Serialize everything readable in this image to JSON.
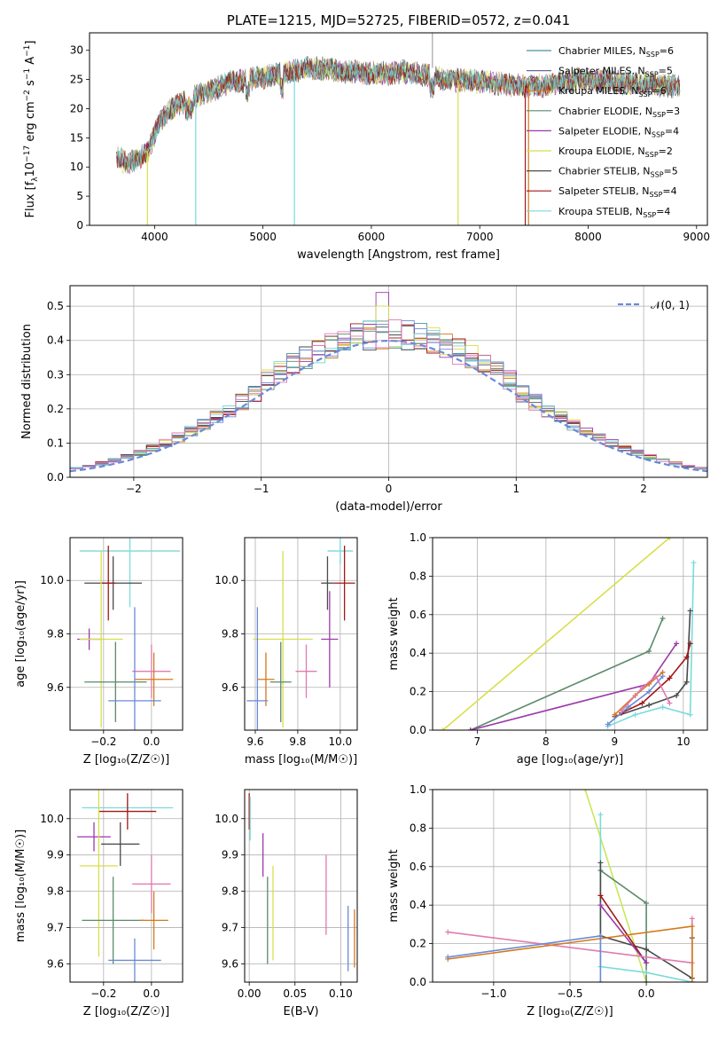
{
  "figure_title": "PLATE=1215, MJD=52725, FIBERID=0572, z=0.041",
  "colors": {
    "Chabrier MILES": "#4a90a0",
    "Salpeter MILES": "#6a6a9a",
    "Kroupa MILES": "#d4781c",
    "Chabrier ELODIE": "#5a8a6a",
    "Salpeter ELODIE": "#9a3aaa",
    "Kroupa ELODIE": "#d8de4a",
    "Chabrier STELIB": "#4a4a4a",
    "Salpeter STELIB": "#a01818",
    "Kroupa STELIB": "#7adada",
    "extra_blue": "#6a8ad8",
    "extra_pink": "#e07ab0",
    "extra_lime": "#c8e85a"
  },
  "chart_data": [
    {
      "id": "spectrum",
      "type": "line",
      "title": "PLATE=1215, MJD=52725, FIBERID=0572, z=0.041",
      "xlabel": "wavelength [Angstrom, rest frame]",
      "ylabel": "Flux [f",
      "ylabel_full": "Flux [fλ10⁻¹⁷ erg cm⁻² s⁻¹ A⁻¹]",
      "xlim": [
        3400,
        9100
      ],
      "ylim": [
        0,
        33
      ],
      "xticks": [
        4000,
        5000,
        6000,
        7000,
        8000,
        9000
      ],
      "yticks": [
        0,
        5,
        10,
        15,
        20,
        25,
        30
      ],
      "grid": false,
      "legend_position": "top-right",
      "legend": [
        {
          "name": "Chabrier MILES",
          "sub": "SSP",
          "n": "6"
        },
        {
          "name": "Salpeter MILES",
          "sub": "SSP",
          "n": "5"
        },
        {
          "name": "Kroupa MILES",
          "sub": "SSP",
          "n": "6"
        },
        {
          "name": "Chabrier ELODIE",
          "sub": "SSP",
          "n": "3"
        },
        {
          "name": "Salpeter ELODIE",
          "sub": "SSP",
          "n": "4"
        },
        {
          "name": "Kroupa ELODIE",
          "sub": "SSP",
          "n": "2"
        },
        {
          "name": "Chabrier STELIB",
          "sub": "SSP",
          "n": "5"
        },
        {
          "name": "Salpeter STELIB",
          "sub": "SSP",
          "n": "4"
        },
        {
          "name": "Kroupa STELIB",
          "sub": "SSP",
          "n": "4"
        }
      ],
      "continuum": {
        "x": [
          3650,
          3750,
          3850,
          3950,
          4050,
          4150,
          4300,
          4500,
          4700,
          4900,
          5100,
          5300,
          5500,
          5700,
          5900,
          6100,
          6300,
          6500,
          6700,
          6900,
          7100,
          7300,
          7500,
          7700,
          7900,
          8100,
          8300,
          8500,
          8700,
          8850
        ],
        "y": [
          12,
          10.5,
          11.5,
          13,
          18,
          20,
          21.5,
          23,
          24.5,
          25,
          25.8,
          26.5,
          27,
          26.5,
          26.2,
          26,
          26.3,
          25.8,
          25,
          24.8,
          24.5,
          24,
          23.8,
          24.2,
          25,
          24.8,
          24.5,
          24.3,
          24,
          23.8
        ]
      },
      "absorption_dips": [
        {
          "x": 3934,
          "y": 0,
          "series": "Kroupa ELODIE"
        },
        {
          "x": 4380,
          "y": 0,
          "series": "Kroupa STELIB"
        },
        {
          "x": 5290,
          "y": 0,
          "series": "Kroupa STELIB"
        },
        {
          "x": 6800,
          "y": 0,
          "series": "Kroupa ELODIE"
        },
        {
          "x": 7420,
          "y": 0,
          "series": "Salpeter STELIB"
        },
        {
          "x": 7450,
          "y": 0,
          "series": "Kroupa MILES"
        }
      ]
    },
    {
      "id": "residuals",
      "type": "histogram",
      "xlabel": "(data-model)/error",
      "ylabel": "Normed distribution",
      "xlim": [
        -2.5,
        2.5
      ],
      "ylim": [
        0,
        0.56
      ],
      "xticks": [
        -2,
        -1,
        0,
        1,
        2
      ],
      "yticks": [
        0.0,
        0.1,
        0.2,
        0.3,
        0.4,
        0.5
      ],
      "grid": true,
      "legend_position": "top-right",
      "legend": [
        {
          "name": "𝒩(0, 1)",
          "style": "dashed"
        }
      ],
      "bin_width": 0.1,
      "peak_values": {
        "Salpeter ELODIE": 0.54,
        "Kroupa ELODIE": 0.5,
        "Chabrier STELIB": 0.47
      }
    },
    {
      "id": "age_vs_Z",
      "type": "errorbar",
      "xlabel": "Z [log₁₀(Z/Z☉)]",
      "ylabel": "age  [log₁₀(age/yr)]",
      "xlim": [
        -0.34,
        0.13
      ],
      "ylim": [
        9.44,
        10.16
      ],
      "xticks": [
        -0.2,
        0.0
      ],
      "yticks": [
        9.6,
        9.8,
        10.0
      ],
      "grid": true,
      "points": [
        {
          "series": "Kroupa STELIB",
          "x": -0.09,
          "xerr": 0.21,
          "y": 10.11,
          "yerr": 0.21
        },
        {
          "series": "Chabrier STELIB",
          "x": -0.16,
          "xerr": 0.12,
          "y": 9.99,
          "yerr": 0.1
        },
        {
          "series": "Salpeter STELIB",
          "x": -0.18,
          "xerr": 0.03,
          "y": 9.99,
          "yerr": 0.14
        },
        {
          "series": "Salpeter ELODIE",
          "x": -0.26,
          "xerr": 0.05,
          "y": 9.78,
          "yerr": 0.04
        },
        {
          "series": "Kroupa ELODIE",
          "x": -0.21,
          "xerr": 0.09,
          "y": 9.78,
          "yerr": 0.33
        },
        {
          "series": "Chabrier ELODIE",
          "x": -0.15,
          "xerr": 0.13,
          "y": 9.62,
          "yerr": 0.15
        },
        {
          "series": "extra_pink",
          "x": 0.0,
          "xerr": 0.08,
          "y": 9.66,
          "yerr": 0.1
        },
        {
          "series": "Kroupa MILES",
          "x": 0.01,
          "xerr": 0.08,
          "y": 9.63,
          "yerr": 0.1
        },
        {
          "series": "extra_blue",
          "x": -0.07,
          "xerr": 0.11,
          "y": 9.55,
          "yerr": 0.35
        }
      ]
    },
    {
      "id": "age_vs_mass",
      "type": "errorbar",
      "xlabel": "mass [log₁₀(M/M☉)]",
      "ylabel": "",
      "xlim": [
        9.55,
        10.08
      ],
      "ylim": [
        9.44,
        10.16
      ],
      "xticks": [
        9.6,
        9.8,
        10.0
      ],
      "yticks": [
        9.6,
        9.8,
        10.0
      ],
      "grid": true,
      "points": [
        {
          "series": "Kroupa STELIB",
          "x": 10.0,
          "xerr": 0.06,
          "y": 10.11,
          "yerr": 0.05
        },
        {
          "series": "Chabrier STELIB",
          "x": 9.94,
          "xerr": 0.03,
          "y": 9.99,
          "yerr": 0.1
        },
        {
          "series": "Salpeter STELIB",
          "x": 10.02,
          "xerr": 0.05,
          "y": 9.99,
          "yerr": 0.14
        },
        {
          "series": "Salpeter ELODIE",
          "x": 9.95,
          "xerr": 0.04,
          "y": 9.78,
          "yerr": 0.18
        },
        {
          "series": "Kroupa ELODIE",
          "x": 9.73,
          "xerr": 0.14,
          "y": 9.78,
          "yerr": 0.33
        },
        {
          "series": "Chabrier ELODIE",
          "x": 9.72,
          "xerr": 0.05,
          "y": 9.62,
          "yerr": 0.15
        },
        {
          "series": "extra_pink",
          "x": 9.84,
          "xerr": 0.05,
          "y": 9.66,
          "yerr": 0.1
        },
        {
          "series": "Kroupa MILES",
          "x": 9.65,
          "xerr": 0.04,
          "y": 9.63,
          "yerr": 0.1
        },
        {
          "series": "extra_blue",
          "x": 9.61,
          "xerr": 0.05,
          "y": 9.55,
          "yerr": 0.35
        }
      ]
    },
    {
      "id": "massweight_vs_age",
      "type": "line",
      "xlabel": "age  [log₁₀(age/yr)]",
      "ylabel": "mass weight",
      "xlim": [
        6.35,
        10.35
      ],
      "ylim": [
        0,
        1.0
      ],
      "xticks": [
        7,
        8,
        9,
        10
      ],
      "yticks": [
        0.0,
        0.2,
        0.4,
        0.6,
        0.8,
        1.0
      ],
      "grid": true,
      "series": [
        {
          "name": "Kroupa ELODIE",
          "x": [
            6.5,
            9.8
          ],
          "y": [
            0.0,
            1.0
          ]
        },
        {
          "name": "Chabrier ELODIE",
          "x": [
            6.9,
            9.5,
            9.7
          ],
          "y": [
            0.0,
            0.41,
            0.58
          ]
        },
        {
          "name": "Salpeter ELODIE",
          "x": [
            6.9,
            9.5,
            9.9
          ],
          "y": [
            0.0,
            0.24,
            0.45
          ]
        },
        {
          "name": "Kroupa STELIB",
          "x": [
            8.9,
            9.3,
            9.7,
            10.1,
            10.15
          ],
          "y": [
            0.02,
            0.08,
            0.12,
            0.08,
            0.87
          ]
        },
        {
          "name": "Chabrier STELIB",
          "x": [
            9.0,
            9.5,
            9.9,
            10.05,
            10.1
          ],
          "y": [
            0.07,
            0.13,
            0.18,
            0.25,
            0.62
          ]
        },
        {
          "name": "Salpeter STELIB",
          "x": [
            9.1,
            9.4,
            9.8,
            10.05,
            10.1
          ],
          "y": [
            0.09,
            0.14,
            0.27,
            0.38,
            0.45
          ]
        },
        {
          "name": "Kroupa MILES",
          "x": [
            9.0,
            9.3,
            9.5,
            9.7
          ],
          "y": [
            0.08,
            0.18,
            0.24,
            0.3
          ]
        },
        {
          "name": "extra_blue",
          "x": [
            8.9,
            9.2,
            9.5,
            9.7
          ],
          "y": [
            0.03,
            0.12,
            0.2,
            0.28
          ]
        },
        {
          "name": "extra_pink",
          "x": [
            9.1,
            9.4,
            9.6,
            9.8
          ],
          "y": [
            0.1,
            0.22,
            0.28,
            0.14
          ]
        }
      ]
    },
    {
      "id": "mass_vs_Z",
      "type": "errorbar",
      "xlabel": "Z [log₁₀(Z/Z☉)]",
      "ylabel": "mass [log₁₀(M/M☉)]",
      "xlim": [
        -0.34,
        0.13
      ],
      "ylim": [
        9.55,
        10.08
      ],
      "xticks": [
        -0.2,
        0.0
      ],
      "yticks": [
        9.6,
        9.7,
        9.8,
        9.9,
        10.0
      ],
      "grid": true,
      "points": [
        {
          "series": "Kroupa STELIB",
          "x": -0.1,
          "xerr": 0.19,
          "y": 10.03,
          "yerr": 0.02
        },
        {
          "series": "Salpeter STELIB",
          "x": -0.1,
          "xerr": 0.12,
          "y": 10.02,
          "yerr": 0.05
        },
        {
          "series": "Chabrier STELIB",
          "x": -0.13,
          "xerr": 0.08,
          "y": 9.93,
          "yerr": 0.06
        },
        {
          "series": "Salpeter ELODIE",
          "x": -0.24,
          "xerr": 0.07,
          "y": 9.95,
          "yerr": 0.04
        },
        {
          "series": "Kroupa ELODIE",
          "x": -0.22,
          "xerr": 0.08,
          "y": 9.87,
          "yerr": 0.25
        },
        {
          "series": "Chabrier ELODIE",
          "x": -0.16,
          "xerr": 0.13,
          "y": 9.72,
          "yerr": 0.12
        },
        {
          "series": "extra_pink",
          "x": 0.0,
          "xerr": 0.08,
          "y": 9.82,
          "yerr": 0.08
        },
        {
          "series": "Kroupa MILES",
          "x": 0.01,
          "xerr": 0.06,
          "y": 9.72,
          "yerr": 0.08
        },
        {
          "series": "extra_blue",
          "x": -0.07,
          "xerr": 0.11,
          "y": 9.61,
          "yerr": 0.06
        }
      ]
    },
    {
      "id": "mass_vs_ebv",
      "type": "errorbar",
      "xlabel": "E(B-V)",
      "ylabel": "",
      "xlim": [
        -0.005,
        0.118
      ],
      "ylim": [
        9.55,
        10.08
      ],
      "xticks": [
        0.0,
        0.05,
        0.1
      ],
      "yticks": [
        9.6,
        9.7,
        9.8,
        9.9,
        10.0
      ],
      "grid": true,
      "points": [
        {
          "series": "Salpeter STELIB",
          "x": 0.0,
          "xerr": 0.0,
          "y": 10.02,
          "yerr": 0.05
        },
        {
          "series": "Kroupa STELIB",
          "x": 0.001,
          "xerr": 0.0,
          "y": 10.0,
          "yerr": 0.06
        },
        {
          "series": "Salpeter ELODIE",
          "x": 0.015,
          "xerr": 0.0,
          "y": 9.9,
          "yerr": 0.06
        },
        {
          "series": "Chabrier ELODIE",
          "x": 0.02,
          "xerr": 0.0,
          "y": 9.72,
          "yerr": 0.12
        },
        {
          "series": "Kroupa ELODIE",
          "x": 0.026,
          "xerr": 0.0,
          "y": 9.74,
          "yerr": 0.13
        },
        {
          "series": "extra_pink",
          "x": 0.084,
          "xerr": 0.0,
          "y": 9.79,
          "yerr": 0.11
        },
        {
          "series": "extra_blue",
          "x": 0.108,
          "xerr": 0.0,
          "y": 9.67,
          "yerr": 0.09
        },
        {
          "series": "Kroupa MILES",
          "x": 0.115,
          "xerr": 0.0,
          "y": 9.67,
          "yerr": 0.08
        }
      ]
    },
    {
      "id": "massweight_vs_Z",
      "type": "line",
      "xlabel": "Z [log₁₀(Z/Z☉)]",
      "ylabel": "mass weight",
      "xlim": [
        -1.4,
        0.4
      ],
      "ylim": [
        0,
        1.0
      ],
      "xticks": [
        -1.0,
        -0.5,
        0.0
      ],
      "yticks": [
        0.0,
        0.2,
        0.4,
        0.6,
        0.8,
        1.0
      ],
      "grid": true,
      "series": [
        {
          "name": "extra_lime",
          "x": [
            -0.4,
            0.0
          ],
          "y": [
            1.0,
            0.0
          ]
        },
        {
          "name": "Chabrier ELODIE",
          "x": [
            -0.3,
            0.0,
            0.0
          ],
          "y": [
            0.58,
            0.41,
            0.0
          ]
        },
        {
          "name": "Kroupa STELIB",
          "x": [
            -0.3,
            -0.3,
            0.0,
            0.3
          ],
          "y": [
            0.87,
            0.08,
            0.05,
            0.0
          ]
        },
        {
          "name": "Chabrier STELIB",
          "x": [
            -0.3,
            -0.3,
            0.0,
            0.3,
            0.3
          ],
          "y": [
            0.62,
            0.24,
            0.17,
            0.02,
            0.23
          ]
        },
        {
          "name": "Salpeter STELIB",
          "x": [
            -0.3,
            0.0
          ],
          "y": [
            0.45,
            0.1
          ]
        },
        {
          "name": "Salpeter ELODIE",
          "x": [
            -0.3,
            0.0
          ],
          "y": [
            0.4,
            0.1
          ]
        },
        {
          "name": "extra_pink",
          "x": [
            -1.3,
            0.3,
            0.3
          ],
          "y": [
            0.26,
            0.1,
            0.33
          ]
        },
        {
          "name": "Kroupa MILES",
          "x": [
            -1.3,
            0.3,
            0.3
          ],
          "y": [
            0.12,
            0.29,
            0.0
          ]
        },
        {
          "name": "extra_blue",
          "x": [
            -1.3,
            -0.3,
            -0.3
          ],
          "y": [
            0.13,
            0.24,
            0.0
          ]
        }
      ]
    }
  ]
}
